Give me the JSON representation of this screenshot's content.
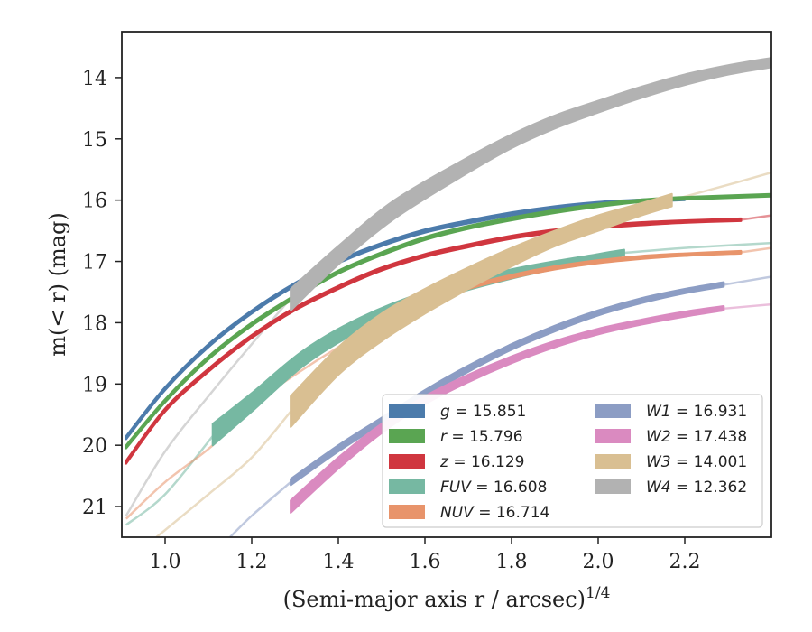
{
  "chart_data": {
    "type": "line",
    "xlabel": "(Semi-major axis r / arcsec)",
    "xlabel_sup": "1/4",
    "ylabel": "m(< r) (mag)",
    "xlim": [
      0.9,
      2.4
    ],
    "ylim": [
      21.5,
      13.25
    ],
    "y_inverted": true,
    "xticks": [
      1.0,
      1.2,
      1.4,
      1.6,
      1.8,
      2.0,
      2.2
    ],
    "xtick_labels": [
      "1.0",
      "1.2",
      "1.4",
      "1.6",
      "1.8",
      "2.0",
      "2.2"
    ],
    "yticks": [
      14,
      15,
      16,
      17,
      18,
      19,
      20,
      21
    ],
    "ytick_labels": [
      "14",
      "15",
      "16",
      "17",
      "18",
      "19",
      "20",
      "21"
    ],
    "grid": false,
    "legend_position": "lower-right",
    "legend_columns": 2,
    "series": [
      {
        "name": "g",
        "legend_value": "15.851",
        "color": "#4c7bab",
        "band": [
          [
            0.91,
            19.85,
            19.9
          ],
          [
            1.0,
            19.05,
            19.1
          ],
          [
            1.1,
            18.35,
            18.4
          ],
          [
            1.2,
            17.8,
            17.85
          ],
          [
            1.3,
            17.35,
            17.4
          ],
          [
            1.4,
            16.98,
            17.03
          ],
          [
            1.5,
            16.7,
            16.75
          ],
          [
            1.6,
            16.48,
            16.53
          ],
          [
            1.7,
            16.33,
            16.38
          ],
          [
            1.8,
            16.2,
            16.25
          ],
          [
            1.9,
            16.1,
            16.15
          ],
          [
            2.0,
            16.03,
            16.08
          ],
          [
            2.1,
            15.99,
            16.03
          ],
          [
            2.2,
            15.96,
            16.0
          ]
        ],
        "faint": []
      },
      {
        "name": "r",
        "legend_value": "15.796",
        "color": "#5aa552",
        "band": [
          [
            0.91,
            20.0,
            20.05
          ],
          [
            1.0,
            19.25,
            19.3
          ],
          [
            1.1,
            18.55,
            18.6
          ],
          [
            1.2,
            18.0,
            18.05
          ],
          [
            1.3,
            17.55,
            17.6
          ],
          [
            1.4,
            17.15,
            17.2
          ],
          [
            1.5,
            16.85,
            16.9
          ],
          [
            1.6,
            16.6,
            16.65
          ],
          [
            1.7,
            16.42,
            16.47
          ],
          [
            1.8,
            16.28,
            16.33
          ],
          [
            1.9,
            16.16,
            16.21
          ],
          [
            2.0,
            16.06,
            16.11
          ],
          [
            2.1,
            15.99,
            16.03
          ],
          [
            2.2,
            15.95,
            15.99
          ],
          [
            2.4,
            15.9,
            15.94
          ]
        ],
        "faint": []
      },
      {
        "name": "z",
        "legend_value": "16.129",
        "color": "#d0363f",
        "band": [
          [
            0.91,
            20.25,
            20.3
          ],
          [
            1.0,
            19.4,
            19.45
          ],
          [
            1.1,
            18.75,
            18.8
          ],
          [
            1.2,
            18.2,
            18.25
          ],
          [
            1.3,
            17.75,
            17.8
          ],
          [
            1.4,
            17.4,
            17.45
          ],
          [
            1.5,
            17.1,
            17.15
          ],
          [
            1.6,
            16.88,
            16.93
          ],
          [
            1.7,
            16.72,
            16.77
          ],
          [
            1.8,
            16.58,
            16.63
          ],
          [
            1.9,
            16.48,
            16.53
          ],
          [
            2.0,
            16.41,
            16.46
          ],
          [
            2.1,
            16.36,
            16.41
          ],
          [
            2.2,
            16.33,
            16.37
          ],
          [
            2.33,
            16.3,
            16.34
          ]
        ],
        "faint": [
          [
            2.33,
            16.32
          ],
          [
            2.4,
            16.25
          ]
        ]
      },
      {
        "name": "FUV",
        "legend_value": "16.608",
        "color": "#76b8a2",
        "band": [
          [
            1.11,
            19.65,
            20.0
          ],
          [
            1.2,
            19.15,
            19.45
          ],
          [
            1.32,
            18.45,
            18.7
          ],
          [
            1.45,
            17.92,
            18.13
          ],
          [
            1.6,
            17.5,
            17.68
          ],
          [
            1.8,
            17.13,
            17.28
          ],
          [
            2.0,
            16.88,
            16.98
          ],
          [
            2.06,
            16.81,
            16.9
          ]
        ],
        "faint": [
          [
            0.91,
            21.3
          ],
          [
            1.0,
            20.8
          ],
          [
            1.11,
            19.85
          ],
          [
            2.06,
            16.86
          ],
          [
            2.2,
            16.78
          ],
          [
            2.4,
            16.7
          ]
        ]
      },
      {
        "name": "NUV",
        "legend_value": "16.714",
        "color": "#e8946b",
        "band": [
          [
            1.6,
            17.65,
            17.7
          ],
          [
            1.7,
            17.4,
            17.45
          ],
          [
            1.8,
            17.22,
            17.27
          ],
          [
            1.9,
            17.08,
            17.13
          ],
          [
            2.0,
            16.98,
            17.03
          ],
          [
            2.1,
            16.91,
            16.96
          ],
          [
            2.2,
            16.87,
            16.91
          ],
          [
            2.33,
            16.83,
            16.87
          ]
        ],
        "faint": [
          [
            0.91,
            21.2
          ],
          [
            1.0,
            20.6
          ],
          [
            1.11,
            20.0
          ],
          [
            1.2,
            19.35
          ],
          [
            1.3,
            18.85
          ],
          [
            1.4,
            18.4
          ],
          [
            1.5,
            18.0
          ],
          [
            1.6,
            17.67
          ],
          [
            2.33,
            16.85
          ],
          [
            2.4,
            16.78
          ]
        ]
      },
      {
        "name": "W1",
        "legend_value": "16.931",
        "color": "#8c9dc4",
        "band": [
          [
            1.29,
            20.55,
            20.65
          ],
          [
            1.4,
            20.0,
            20.1
          ],
          [
            1.5,
            19.55,
            19.65
          ],
          [
            1.6,
            19.1,
            19.2
          ],
          [
            1.7,
            18.7,
            18.8
          ],
          [
            1.8,
            18.35,
            18.44
          ],
          [
            1.9,
            18.05,
            18.14
          ],
          [
            2.0,
            17.8,
            17.88
          ],
          [
            2.1,
            17.6,
            17.68
          ],
          [
            2.2,
            17.45,
            17.52
          ],
          [
            2.29,
            17.34,
            17.41
          ]
        ],
        "faint": [
          [
            1.15,
            21.5
          ],
          [
            1.2,
            21.15
          ],
          [
            1.29,
            20.6
          ],
          [
            2.29,
            17.38
          ],
          [
            2.4,
            17.25
          ]
        ]
      },
      {
        "name": "W2",
        "legend_value": "17.438",
        "color": "#da8ac0",
        "band": [
          [
            1.29,
            20.9,
            21.1
          ],
          [
            1.4,
            20.2,
            20.38
          ],
          [
            1.5,
            19.65,
            19.8
          ],
          [
            1.6,
            19.2,
            19.33
          ],
          [
            1.7,
            18.85,
            18.97
          ],
          [
            1.8,
            18.55,
            18.66
          ],
          [
            1.9,
            18.3,
            18.4
          ],
          [
            2.0,
            18.1,
            18.19
          ],
          [
            2.1,
            17.95,
            18.03
          ],
          [
            2.2,
            17.82,
            17.9
          ],
          [
            2.29,
            17.73,
            17.8
          ]
        ],
        "faint": [
          [
            2.29,
            17.77
          ],
          [
            2.4,
            17.7
          ]
        ]
      },
      {
        "name": "W3",
        "legend_value": "14.001",
        "color": "#d9bf92",
        "band": [
          [
            1.29,
            19.2,
            19.7
          ],
          [
            1.4,
            18.4,
            18.85
          ],
          [
            1.5,
            17.85,
            18.3
          ],
          [
            1.6,
            17.45,
            17.85
          ],
          [
            1.7,
            17.1,
            17.45
          ],
          [
            1.8,
            16.78,
            17.08
          ],
          [
            1.9,
            16.5,
            16.75
          ],
          [
            2.0,
            16.25,
            16.5
          ],
          [
            2.1,
            16.05,
            16.25
          ],
          [
            2.17,
            15.9,
            16.1
          ]
        ],
        "faint": [
          [
            0.98,
            21.5
          ],
          [
            1.1,
            20.8
          ],
          [
            1.2,
            20.2
          ],
          [
            1.29,
            19.45
          ],
          [
            2.17,
            16.0
          ],
          [
            2.3,
            15.75
          ],
          [
            2.4,
            15.55
          ]
        ]
      },
      {
        "name": "W4",
        "legend_value": "12.362",
        "color": "#b2b2b2",
        "band": [
          [
            1.29,
            17.45,
            17.8
          ],
          [
            1.4,
            16.75,
            17.05
          ],
          [
            1.53,
            16.0,
            16.3
          ],
          [
            1.7,
            15.3,
            15.55
          ],
          [
            1.8,
            14.93,
            15.15
          ],
          [
            1.9,
            14.62,
            14.83
          ],
          [
            2.0,
            14.38,
            14.57
          ],
          [
            2.1,
            14.15,
            14.33
          ],
          [
            2.2,
            13.95,
            14.12
          ],
          [
            2.3,
            13.8,
            13.95
          ],
          [
            2.4,
            13.68,
            13.83
          ]
        ],
        "faint": [
          [
            0.91,
            21.15
          ],
          [
            1.0,
            20.1
          ],
          [
            1.1,
            19.2
          ],
          [
            1.2,
            18.35
          ],
          [
            1.29,
            17.6
          ]
        ]
      }
    ]
  }
}
